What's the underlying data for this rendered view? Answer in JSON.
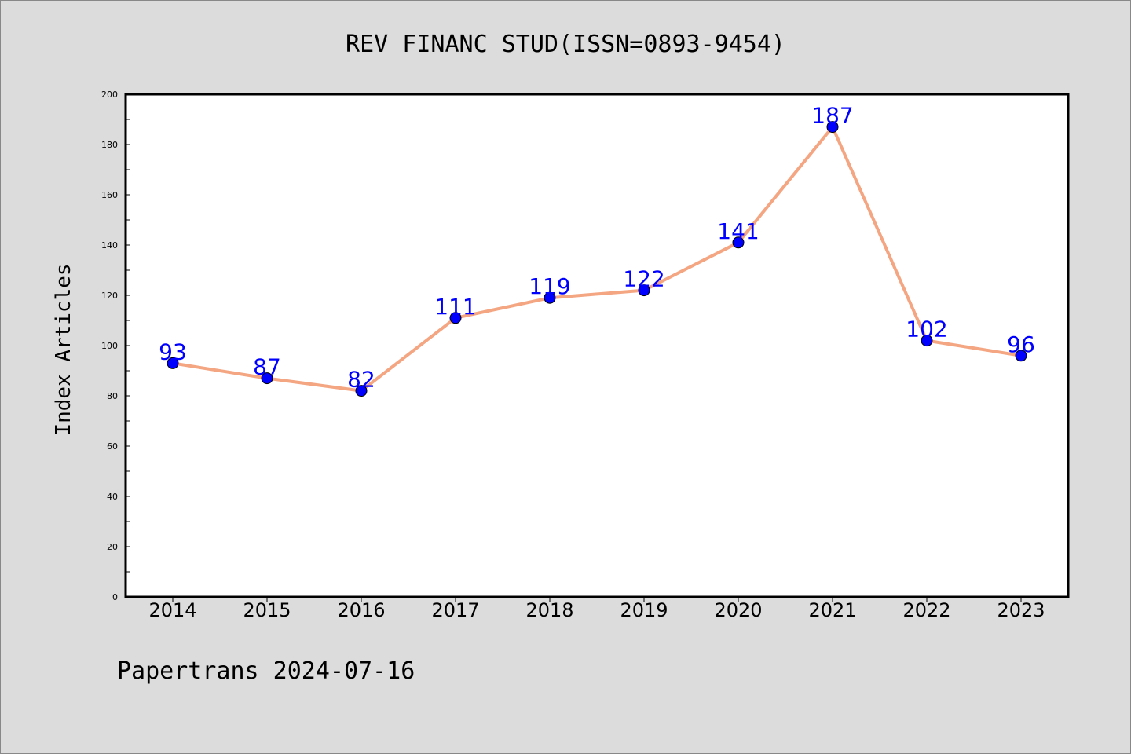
{
  "chart_data": {
    "type": "line",
    "title": "REV FINANC STUD(ISSN=0893-9454)",
    "xlabel": "",
    "ylabel": "Index Articles",
    "categories": [
      "2014",
      "2015",
      "2016",
      "2017",
      "2018",
      "2019",
      "2020",
      "2021",
      "2022",
      "2023"
    ],
    "series": [
      {
        "values": [
          93,
          87,
          82,
          111,
          119,
          122,
          141,
          187,
          102,
          96
        ]
      }
    ],
    "ylim": [
      0,
      200
    ],
    "yticks": [
      0,
      20,
      40,
      60,
      80,
      100,
      120,
      140,
      160,
      180,
      200
    ],
    "grid": false,
    "data_labels": true,
    "colors": {
      "line": "#f4a582",
      "marker": "#0000ff",
      "label": "#0000ff",
      "background": "#dcdcdc",
      "plot_background": "#ffffff"
    }
  },
  "footer": "Papertrans 2024-07-16"
}
